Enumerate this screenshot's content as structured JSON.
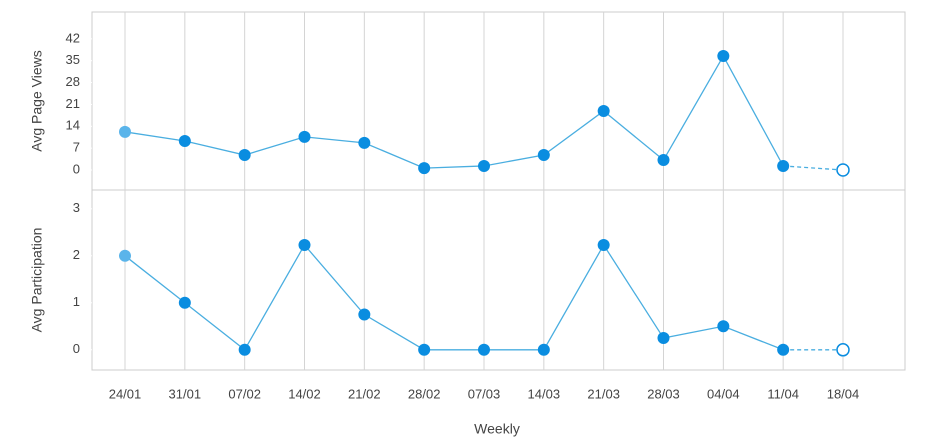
{
  "chart_data": [
    {
      "type": "line",
      "ylabel": "Avg Page Views",
      "color": "#0a8de0",
      "values": [
        12.2,
        9.3,
        4.8,
        10.6,
        8.7,
        0.6,
        1.3,
        4.8,
        18.9,
        3.2,
        36.5,
        1.3,
        0
      ],
      "ylim": [
        -6.4,
        50.6
      ],
      "yticks": [
        0,
        7,
        14,
        21,
        28,
        35,
        42
      ],
      "grid": true,
      "last_point_style": "dashed-open"
    },
    {
      "type": "line",
      "ylabel": "Avg Participation",
      "xlabel": "Weekly",
      "color": "#0a8de0",
      "categories": [
        "24/01",
        "31/01",
        "07/02",
        "14/02",
        "21/02",
        "28/02",
        "07/03",
        "14/03",
        "21/03",
        "28/03",
        "04/04",
        "11/04",
        "18/04"
      ],
      "values": [
        2.0,
        1.0,
        0,
        2.23,
        0.75,
        0,
        0,
        0,
        2.23,
        0.25,
        0.5,
        0,
        0
      ],
      "ylim": [
        -0.43,
        3.4
      ],
      "yticks": [
        0,
        1,
        2,
        3
      ],
      "grid": true,
      "last_point_style": "dashed-open"
    }
  ]
}
